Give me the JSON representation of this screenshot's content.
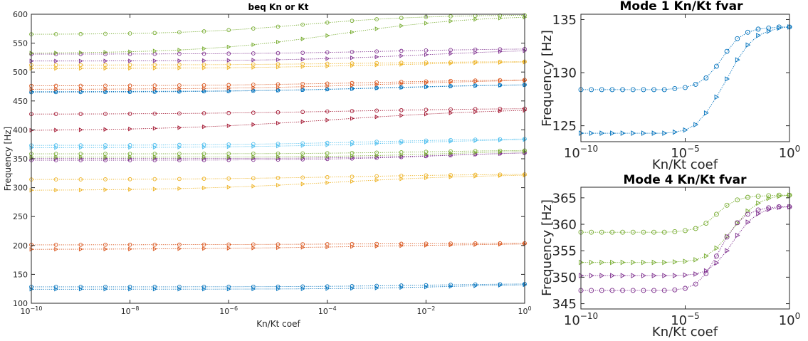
{
  "chart_data": [
    {
      "type": "line",
      "title": "beq Kn or Kt",
      "xlabel": "Kn/Kt coef",
      "ylabel": "Frequency [Hz]",
      "xscale": "log",
      "xlim": [
        1e-10,
        1
      ],
      "ylim": [
        100,
        600
      ],
      "grid": false,
      "x": [
        1e-10,
        3.162e-10,
        1e-09,
        3.162e-09,
        1e-08,
        3.162e-08,
        1e-07,
        3.162e-07,
        1e-06,
        3.162e-06,
        1e-05,
        3.162e-05,
        0.0001,
        0.0003162,
        0.001,
        0.003162,
        0.01,
        0.03162,
        0.1,
        0.3162,
        1
      ],
      "xticks": [
        "10^-10",
        "10^-8",
        "10^-6",
        "10^-4",
        "10^-2",
        "10^0"
      ],
      "yticks": [
        "100",
        "150",
        "200",
        "250",
        "300",
        "350",
        "400",
        "450",
        "500",
        "550",
        "600"
      ],
      "series": [
        {
          "color": "#0072BD",
          "marker": "circle",
          "start": 128.4,
          "end": 134.3,
          "mid_exp": -2.0,
          "width": 1.2
        },
        {
          "color": "#0072BD",
          "marker": "triangle",
          "start": 124.3,
          "end": 134.3,
          "mid_exp": -1.4,
          "width": 1.2
        },
        {
          "color": "#D95319",
          "marker": "circle",
          "start": 201.0,
          "end": 204.5,
          "mid_exp": -3.0,
          "width": 2.0
        },
        {
          "color": "#D95319",
          "marker": "triangle",
          "start": 193.0,
          "end": 204.5,
          "mid_exp": -3.0,
          "width": 2.0
        },
        {
          "color": "#EDB120",
          "marker": "circle",
          "start": 314.0,
          "end": 324.0,
          "mid_exp": -3.5,
          "width": 1.6
        },
        {
          "color": "#EDB120",
          "marker": "triangle",
          "start": 295.0,
          "end": 324.0,
          "mid_exp": -3.8,
          "width": 1.6
        },
        {
          "color": "#7E2F8E",
          "marker": "circle",
          "start": 347.5,
          "end": 363.3,
          "mid_exp": -1.7,
          "width": 1.2
        },
        {
          "color": "#7E2F8E",
          "marker": "triangle",
          "start": 350.3,
          "end": 363.3,
          "mid_exp": -1.3,
          "width": 1.2
        },
        {
          "color": "#77AC30",
          "marker": "circle",
          "start": 358.5,
          "end": 365.5,
          "mid_exp": -2.0,
          "width": 1.2
        },
        {
          "color": "#77AC30",
          "marker": "triangle",
          "start": 352.8,
          "end": 365.5,
          "mid_exp": -1.5,
          "width": 1.2
        },
        {
          "color": "#4DBEEE",
          "marker": "circle",
          "start": 373.0,
          "end": 386.0,
          "mid_exp": -3.0,
          "width": 1.6
        },
        {
          "color": "#4DBEEE",
          "marker": "triangle",
          "start": 369.0,
          "end": 386.0,
          "mid_exp": -2.5,
          "width": 1.6
        },
        {
          "color": "#A2142F",
          "marker": "circle",
          "start": 427.0,
          "end": 438.0,
          "mid_exp": -3.5,
          "width": 1.8
        },
        {
          "color": "#A2142F",
          "marker": "triangle",
          "start": 398.0,
          "end": 438.0,
          "mid_exp": -3.8,
          "width": 1.8
        },
        {
          "color": "#0072BD",
          "marker": "circle",
          "start": 465.0,
          "end": 480.0,
          "mid_exp": -3.0,
          "width": 1.6
        },
        {
          "color": "#0072BD",
          "marker": "triangle",
          "start": 466.0,
          "end": 480.0,
          "mid_exp": -2.6,
          "width": 1.6
        },
        {
          "color": "#D95319",
          "marker": "circle",
          "start": 476.0,
          "end": 488.0,
          "mid_exp": -3.0,
          "width": 1.6
        },
        {
          "color": "#D95319",
          "marker": "triangle",
          "start": 470.0,
          "end": 488.0,
          "mid_exp": -2.8,
          "width": 1.6
        },
        {
          "color": "#EDB120",
          "marker": "circle",
          "start": 512.0,
          "end": 519.0,
          "mid_exp": -3.0,
          "width": 1.6
        },
        {
          "color": "#EDB120",
          "marker": "triangle",
          "start": 506.0,
          "end": 519.0,
          "mid_exp": -2.8,
          "width": 1.6
        },
        {
          "color": "#7E2F8E",
          "marker": "circle",
          "start": 531.0,
          "end": 541.0,
          "mid_exp": -2.8,
          "width": 1.4
        },
        {
          "color": "#7E2F8E",
          "marker": "triangle",
          "start": 519.0,
          "end": 541.0,
          "mid_exp": -2.0,
          "width": 1.4
        },
        {
          "color": "#77AC30",
          "marker": "circle",
          "start": 565.0,
          "end": 599.0,
          "mid_exp": -4.5,
          "width": 1.2
        },
        {
          "color": "#77AC30",
          "marker": "triangle",
          "start": 532.0,
          "end": 599.0,
          "mid_exp": -3.8,
          "width": 1.4
        }
      ]
    },
    {
      "type": "line",
      "title": "Mode 1 Kn/Kt fvar",
      "xlabel": "Kn/Kt coef",
      "ylabel": "Frequency [Hz]",
      "xscale": "log",
      "xlim": [
        1e-10,
        1
      ],
      "ylim": [
        123.5,
        135.5
      ],
      "grid": false,
      "x": [
        1e-10,
        3.162e-10,
        1e-09,
        3.162e-09,
        1e-08,
        3.162e-08,
        1e-07,
        3.162e-07,
        1e-06,
        3.162e-06,
        1e-05,
        3.162e-05,
        0.0001,
        0.0003162,
        0.001,
        0.003162,
        0.01,
        0.03162,
        0.1,
        0.3162,
        1
      ],
      "xticks": [
        "10^-10",
        "10^-5",
        "10^0"
      ],
      "yticks": [
        "125",
        "130",
        "135"
      ],
      "series": [
        {
          "color": "#0072BD",
          "marker": "circle",
          "values": [
            128.4,
            128.4,
            128.4,
            128.4,
            128.4,
            128.4,
            128.4,
            128.4,
            128.4,
            128.5,
            128.6,
            128.9,
            129.5,
            130.6,
            132.0,
            133.2,
            133.8,
            134.1,
            134.2,
            134.3,
            134.3
          ]
        },
        {
          "color": "#0072BD",
          "marker": "triangle",
          "values": [
            124.3,
            124.3,
            124.3,
            124.3,
            124.3,
            124.3,
            124.3,
            124.3,
            124.3,
            124.4,
            124.6,
            125.1,
            126.2,
            127.7,
            129.4,
            131.2,
            132.6,
            133.5,
            133.9,
            134.2,
            134.3
          ]
        }
      ]
    },
    {
      "type": "line",
      "title": "Mode 4 Kn/Kt fvar",
      "xlabel": "Kn/Kt coef",
      "ylabel": "Frequency [Hz]",
      "xscale": "log",
      "xlim": [
        1e-10,
        1
      ],
      "ylim": [
        344,
        367
      ],
      "grid": false,
      "x": [
        1e-10,
        3.162e-10,
        1e-09,
        3.162e-09,
        1e-08,
        3.162e-08,
        1e-07,
        3.162e-07,
        1e-06,
        3.162e-06,
        1e-05,
        3.162e-05,
        0.0001,
        0.0003162,
        0.001,
        0.003162,
        0.01,
        0.03162,
        0.1,
        0.3162,
        1
      ],
      "xticks": [
        "10^-10",
        "10^-5",
        "10^0"
      ],
      "yticks": [
        "345",
        "350",
        "355",
        "360",
        "365"
      ],
      "series": [
        {
          "color": "#77AC30",
          "marker": "circle",
          "values": [
            358.5,
            358.5,
            358.5,
            358.5,
            358.5,
            358.5,
            358.5,
            358.5,
            358.5,
            358.6,
            358.8,
            359.2,
            360.2,
            361.9,
            363.6,
            364.6,
            365.1,
            365.3,
            365.4,
            365.5,
            365.5
          ]
        },
        {
          "color": "#77AC30",
          "marker": "triangle",
          "values": [
            352.8,
            352.8,
            352.8,
            352.8,
            352.8,
            352.8,
            352.8,
            352.8,
            352.8,
            352.9,
            353.0,
            353.3,
            354.0,
            355.5,
            357.7,
            360.2,
            362.5,
            364.0,
            364.9,
            365.3,
            365.5
          ]
        },
        {
          "color": "#7E2F8E",
          "marker": "circle",
          "values": [
            347.5,
            347.5,
            347.5,
            347.5,
            347.5,
            347.5,
            347.5,
            347.5,
            347.5,
            347.6,
            347.9,
            348.7,
            350.7,
            354.0,
            357.6,
            360.3,
            361.9,
            362.7,
            363.1,
            363.3,
            363.3
          ]
        },
        {
          "color": "#7E2F8E",
          "marker": "triangle",
          "values": [
            350.3,
            350.3,
            350.3,
            350.3,
            350.3,
            350.3,
            350.3,
            350.3,
            350.3,
            350.3,
            350.4,
            350.6,
            351.2,
            352.7,
            355.0,
            357.9,
            360.4,
            362.0,
            362.8,
            363.2,
            363.3
          ]
        }
      ]
    }
  ]
}
